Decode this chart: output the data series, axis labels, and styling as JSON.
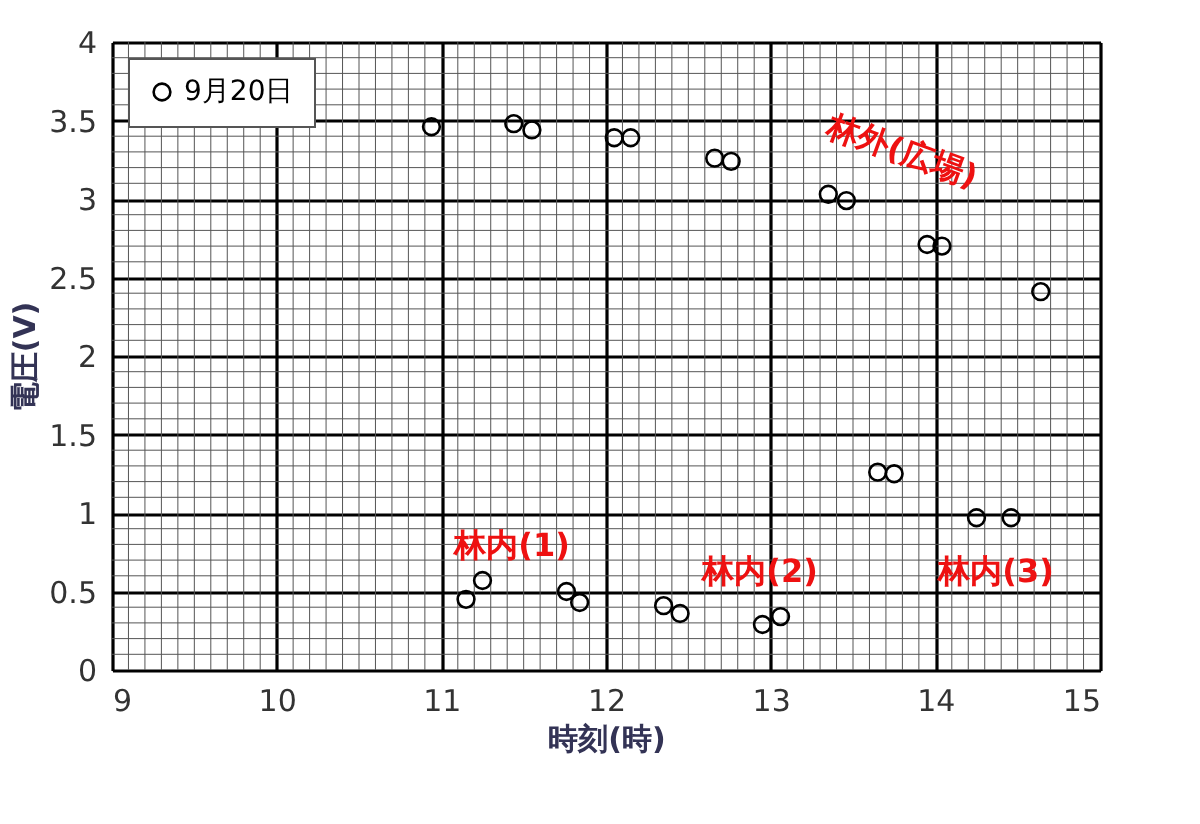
{
  "chart_data": {
    "type": "scatter",
    "xlabel": "時刻(時)",
    "ylabel": "電圧(V)",
    "series": [
      {
        "name": "9月20日",
        "color": "#000000",
        "x": [
          10.94,
          11.44,
          11.55,
          12.05,
          12.15,
          12.66,
          12.76,
          13.35,
          13.46,
          13.95,
          14.04,
          14.64,
          13.65,
          13.75,
          14.25,
          14.46,
          11.15,
          11.25,
          11.76,
          11.84,
          12.35,
          12.45,
          12.95,
          13.06
        ],
        "values": [
          3.46,
          3.48,
          3.44,
          3.39,
          3.39,
          3.26,
          3.24,
          3.03,
          2.99,
          2.71,
          2.7,
          2.41,
          1.26,
          1.25,
          0.97,
          0.97,
          0.45,
          0.57,
          0.5,
          0.43,
          0.41,
          0.36,
          0.29,
          0.34
        ]
      }
    ],
    "marker": "circle",
    "xlim": [
      9,
      15
    ],
    "ylim": [
      0,
      4
    ],
    "xticks": [
      9,
      10,
      11,
      12,
      13,
      14,
      15
    ],
    "yticks": [
      0,
      0.5,
      1,
      1.5,
      2,
      2.5,
      3,
      3.5,
      4
    ],
    "grid": true,
    "legend": "top left",
    "annotations": [
      "林外(広場)",
      "林内(1)",
      "林内(2)",
      "林内(3)"
    ]
  }
}
